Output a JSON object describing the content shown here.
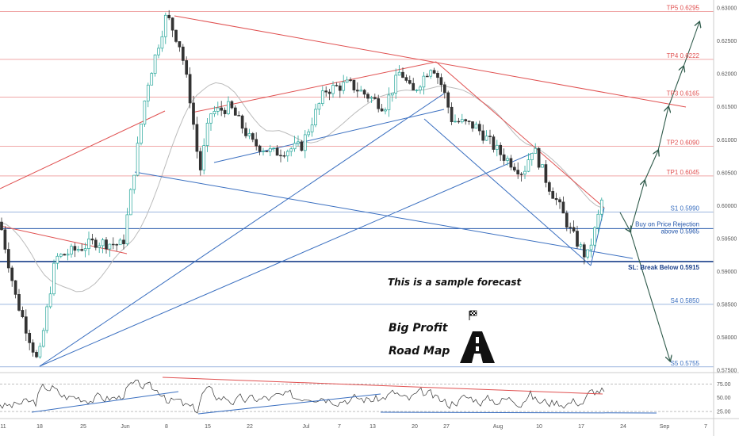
{
  "chart_data": {
    "type": "candlestick",
    "instrument": "",
    "ylim": [
      0.575,
      0.6305
    ],
    "price_ticks": [
      "0.63000",
      "0.62500",
      "0.62000",
      "0.61500",
      "0.61000",
      "0.60500",
      "0.60000",
      "0.59500",
      "0.59000",
      "0.58500",
      "0.58000",
      "0.57500"
    ],
    "x_ticks": [
      "11",
      "18",
      "25",
      "Jun",
      "8",
      "15",
      "22",
      "Jul",
      "7",
      "13",
      "20",
      "27",
      "Aug",
      "10",
      "17",
      "24",
      "Sep",
      "7"
    ],
    "levels": [
      {
        "label": "TP5 0.6295",
        "price": 0.6295,
        "color": "#e05050"
      },
      {
        "label": "TP4 0.6222",
        "price": 0.6222,
        "color": "#e05050"
      },
      {
        "label": "TP3 0.6165",
        "price": 0.6165,
        "color": "#e05050"
      },
      {
        "label": "TP2 0.6090",
        "price": 0.609,
        "color": "#e05050"
      },
      {
        "label": "TP1 0.6045",
        "price": 0.6045,
        "color": "#e05050"
      },
      {
        "label": "S1 0.5990",
        "price": 0.599,
        "color": "#3a6fc0"
      },
      {
        "label": "S4 0.5850",
        "price": 0.585,
        "color": "#3a6fc0"
      },
      {
        "label": "S5 0.5755",
        "price": 0.5755,
        "color": "#3a6fc0"
      }
    ],
    "entry": {
      "label_line1": "Buy on Price Rejection",
      "label_line2": "above 0.5965",
      "price": 0.5965,
      "color": "#2255aa"
    },
    "stop": {
      "label": "SL: Break Below 0.5915",
      "price": 0.5915,
      "color": "#1a3f8a"
    },
    "annotations": {
      "forecast": "This is a sample forecast",
      "title_line1": "Big Profit",
      "title_line2": "Road Map"
    },
    "oscillator": {
      "ticks": [
        "75.00",
        "50.00",
        "25.00"
      ],
      "range": [
        15,
        90
      ]
    },
    "colors": {
      "bull": "#26a69a",
      "bear": "#333333",
      "resistance": "#e05050",
      "support": "#3a6fc0",
      "ma": "#bbbbbb"
    }
  }
}
